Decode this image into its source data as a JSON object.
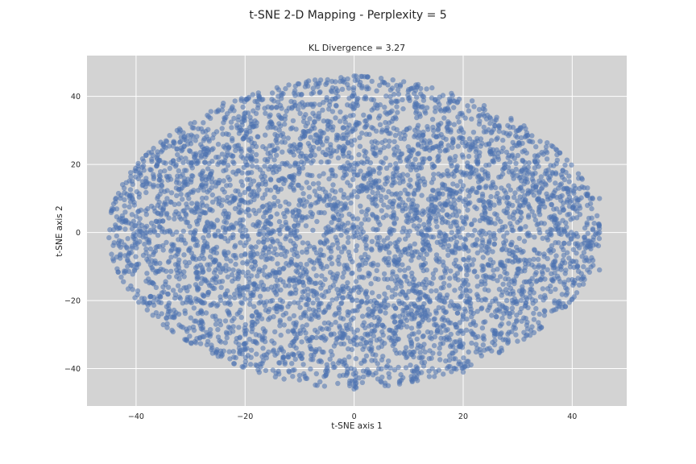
{
  "chart_data": {
    "type": "scatter",
    "title": "t-SNE 2-D Mapping - Perplexity = 5",
    "subtitle": "KL Divergence = 3.27",
    "xlabel": "t-SNE axis 1",
    "ylabel": "t-SNE axis 2",
    "xlim": [
      -49,
      50
    ],
    "ylim": [
      -51,
      52
    ],
    "xticks": [
      -40,
      -20,
      0,
      20,
      40
    ],
    "yticks": [
      -40,
      -20,
      0,
      20,
      40
    ],
    "xtick_labels": [
      "−40",
      "−20",
      "0",
      "20",
      "40"
    ],
    "ytick_labels": [
      "−40",
      "−20",
      "0",
      "20",
      "40"
    ],
    "grid": true,
    "background_color": "#d3d3d3",
    "grid_color": "#ffffff",
    "point_color": "#4c72b0",
    "point_alpha": 0.55,
    "x_center": 0,
    "y_center": 0,
    "x_radius": 45,
    "y_radius": 46,
    "point_count_estimate": 5000,
    "points": [
      [
        -44,
        -3
      ],
      [
        -42,
        6
      ],
      [
        -40,
        18
      ],
      [
        -38,
        -12
      ],
      [
        -35,
        26
      ],
      [
        -33,
        -25
      ],
      [
        -30,
        32
      ],
      [
        -27,
        -33
      ],
      [
        -24,
        38
      ],
      [
        -20,
        -39
      ],
      [
        -15,
        41
      ],
      [
        -10,
        -42
      ],
      [
        -5,
        44
      ],
      [
        0,
        46
      ],
      [
        0,
        -45
      ],
      [
        5,
        -44
      ],
      [
        10,
        42
      ],
      [
        15,
        -41
      ],
      [
        20,
        -41
      ],
      [
        22,
        37
      ],
      [
        27,
        -34
      ],
      [
        30,
        30
      ],
      [
        34,
        -24
      ],
      [
        38,
        17
      ],
      [
        41,
        -10
      ],
      [
        43,
        -4
      ],
      [
        45,
        10
      ],
      [
        45,
        0
      ],
      [
        45,
        -11
      ],
      [
        -22,
        10
      ],
      [
        -10,
        5
      ],
      [
        -5,
        -10
      ],
      [
        0,
        0
      ],
      [
        8,
        -5
      ],
      [
        15,
        10
      ],
      [
        25,
        -8
      ],
      [
        32,
        5
      ],
      [
        -30,
        0
      ],
      [
        -15,
        -20
      ],
      [
        12,
        -22
      ],
      [
        18,
        25
      ],
      [
        -25,
        20
      ],
      [
        6,
        30
      ],
      [
        -8,
        28
      ],
      [
        28,
        -20
      ],
      [
        -36,
        8
      ],
      [
        36,
        -5
      ],
      [
        2,
        -28
      ],
      [
        -18,
        -30
      ],
      [
        22,
        -30
      ]
    ]
  }
}
